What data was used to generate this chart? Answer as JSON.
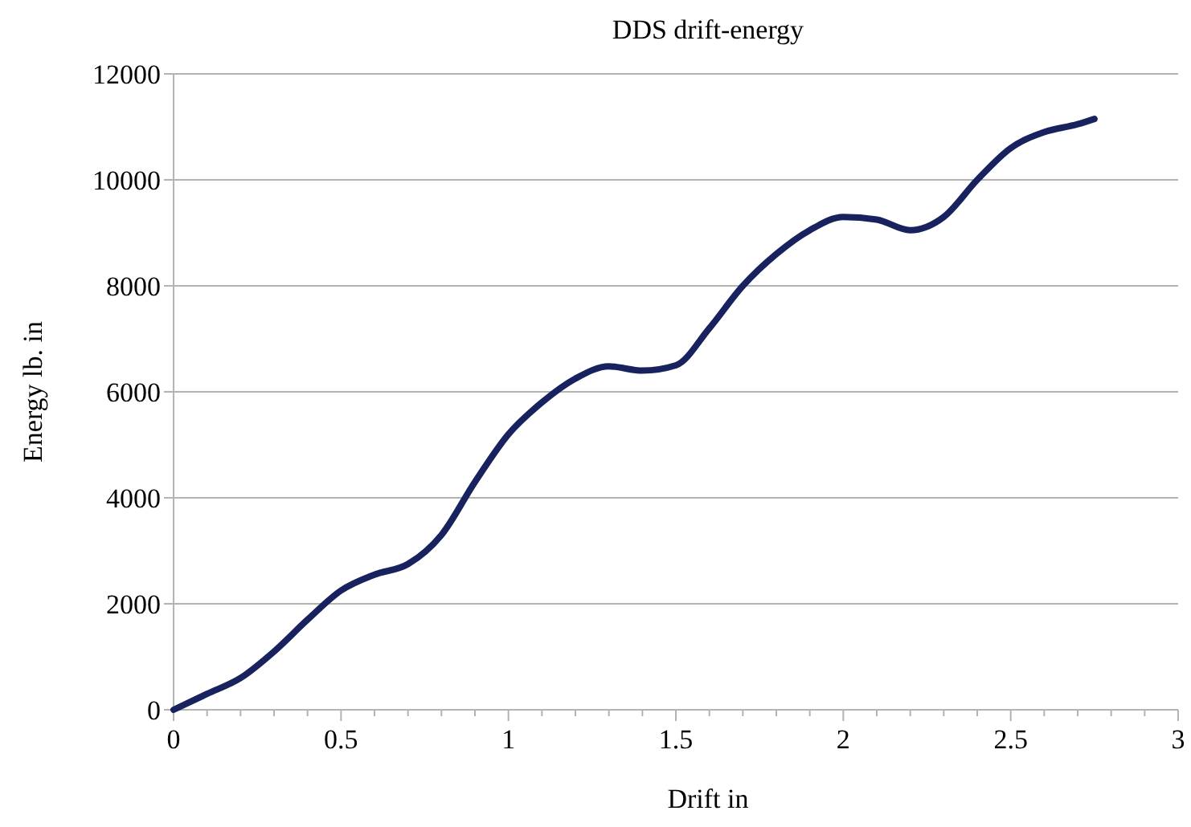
{
  "chart_data": {
    "type": "line",
    "title": "DDS drift-energy",
    "xlabel": "Drift in",
    "ylabel": "Energy lb. in",
    "x": [
      0,
      0.1,
      0.2,
      0.3,
      0.4,
      0.5,
      0.6,
      0.7,
      0.8,
      0.9,
      1.0,
      1.1,
      1.2,
      1.3,
      1.4,
      1.5,
      1.6,
      1.7,
      1.8,
      1.9,
      2.0,
      2.1,
      2.2,
      2.3,
      2.4,
      2.5,
      2.6,
      2.7,
      2.75
    ],
    "series": [
      {
        "color": "#18225e",
        "values": [
          0,
          300,
          600,
          1100,
          1700,
          2250,
          2550,
          2750,
          3300,
          4300,
          5200,
          5800,
          6250,
          6480,
          6400,
          6500,
          7200,
          8000,
          8600,
          9050,
          9300,
          9250,
          9050,
          9300,
          10000,
          10600,
          10900,
          11050,
          11150
        ]
      }
    ],
    "xlim": [
      0,
      3
    ],
    "ylim": [
      0,
      12000
    ],
    "xticks": [
      0,
      {
        "value": 0.1,
        "label": null
      },
      {
        "value": 0.2,
        "label": null
      },
      {
        "value": 0.3,
        "label": null
      },
      {
        "value": 0.4,
        "label": null
      },
      0.5,
      {
        "value": 0.6,
        "label": null
      },
      {
        "value": 0.7,
        "label": null
      },
      {
        "value": 0.8,
        "label": null
      },
      {
        "value": 0.9,
        "label": null
      },
      1,
      {
        "value": 1.1,
        "label": null
      },
      {
        "value": 1.2,
        "label": null
      },
      {
        "value": 1.3,
        "label": null
      },
      {
        "value": 1.4,
        "label": null
      },
      1.5,
      {
        "value": 1.6,
        "label": null
      },
      {
        "value": 1.7,
        "label": null
      },
      {
        "value": 1.8,
        "label": null
      },
      {
        "value": 1.9,
        "label": null
      },
      2,
      {
        "value": 2.1,
        "label": null
      },
      {
        "value": 2.2,
        "label": null
      },
      {
        "value": 2.3,
        "label": null
      },
      {
        "value": 2.4,
        "label": null
      },
      2.5,
      {
        "value": 2.6,
        "label": null
      },
      {
        "value": 2.7,
        "label": null
      },
      {
        "value": 2.8,
        "label": null
      },
      {
        "value": 2.9,
        "label": null
      },
      3
    ],
    "yticks": [
      0,
      2000,
      4000,
      6000,
      8000,
      10000,
      12000
    ],
    "grid": "y",
    "marker": "none",
    "line_style": "solid"
  }
}
